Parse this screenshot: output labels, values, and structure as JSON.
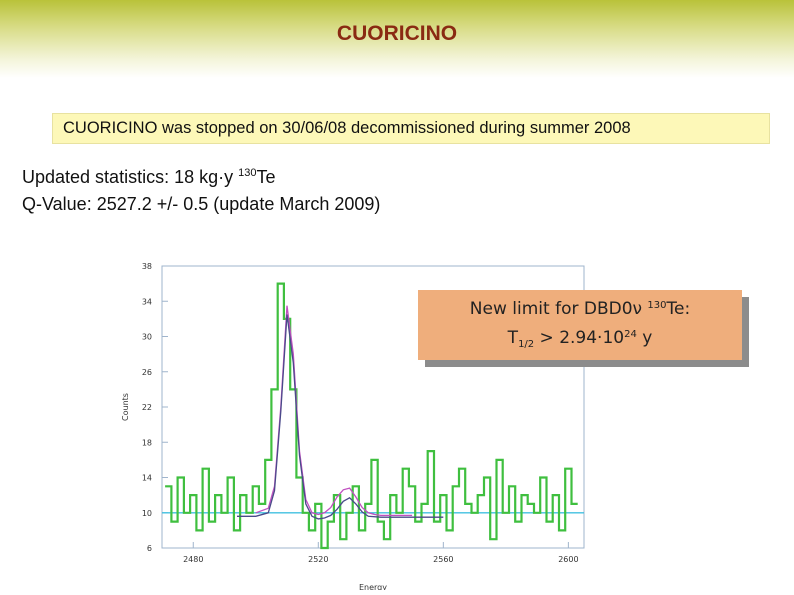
{
  "header": {
    "title": "CUORICINO"
  },
  "notice": {
    "text": "CUORICINO was stopped on 30/06/08 decommissioned during summer 2008"
  },
  "stats": {
    "line1_prefix": "Updated statistics: 18 kg·y ",
    "line1_isotope_mass": "130",
    "line1_element": "Te",
    "line2": "Q-Value: 2527.2 +/- 0.5 (update March 2009)"
  },
  "limit_box": {
    "line1_prefix": "New limit for DBD0ν ",
    "line1_isotope_mass": "130",
    "line1_suffix": "Te:",
    "line2_T": "T",
    "line2_sub": "1/2",
    "line2_mid": " > 2.94·10",
    "line2_exp": "24",
    "line2_unit": " y"
  },
  "chart_data": {
    "type": "line",
    "xlabel": "Energy",
    "ylabel": "Counts",
    "xlim": [
      2470,
      2605
    ],
    "ylim": [
      6,
      38
    ],
    "x_ticks": [
      2480,
      2520,
      2560,
      2600
    ],
    "y_ticks": [
      38,
      34,
      30,
      26,
      22,
      18,
      14,
      10,
      6
    ],
    "grid": false,
    "legend": "none",
    "series": [
      {
        "style": "step-histogram",
        "color": "#3fbf3f",
        "x": [
          2472,
          2474,
          2476,
          2478,
          2480,
          2482,
          2484,
          2486,
          2488,
          2490,
          2492,
          2494,
          2496,
          2498,
          2500,
          2502,
          2504,
          2506,
          2508,
          2510,
          2512,
          2514,
          2516,
          2518,
          2520,
          2522,
          2524,
          2526,
          2528,
          2530,
          2532,
          2534,
          2536,
          2538,
          2540,
          2542,
          2544,
          2546,
          2548,
          2550,
          2552,
          2554,
          2556,
          2558,
          2560,
          2562,
          2564,
          2566,
          2568,
          2570,
          2572,
          2574,
          2576,
          2578,
          2580,
          2582,
          2584,
          2586,
          2588,
          2590,
          2592,
          2594,
          2596,
          2598,
          2600,
          2602
        ],
        "values": [
          13,
          9,
          14,
          10,
          12,
          8,
          15,
          9,
          12,
          10,
          14,
          8,
          12,
          10,
          13,
          11,
          16,
          24,
          36,
          32,
          24,
          14,
          10,
          8,
          11,
          6,
          9,
          12,
          7,
          10,
          13,
          8,
          11,
          16,
          9,
          7,
          12,
          10,
          15,
          13,
          9,
          11,
          17,
          9,
          12,
          8,
          13,
          15,
          11,
          10,
          12,
          14,
          7,
          16,
          10,
          13,
          9,
          12,
          11,
          10,
          14,
          9,
          12,
          8,
          15,
          11
        ]
      },
      {
        "name_hidden": "fit",
        "style": "curve",
        "color": "#c050c0",
        "x": [
          2500,
          2504,
          2506,
          2508,
          2510,
          2512,
          2514,
          2516,
          2518,
          2520,
          2522,
          2524,
          2526,
          2528,
          2530,
          2532,
          2534,
          2536,
          2538,
          2540,
          2550
        ],
        "values": [
          10,
          10.5,
          13,
          22,
          33.5,
          28,
          17,
          11.5,
          10,
          9.8,
          10,
          10.6,
          11.8,
          12.6,
          12.8,
          11.8,
          10.6,
          10,
          9.8,
          9.7,
          9.7
        ]
      },
      {
        "style": "curve",
        "color": "#4a4a8a",
        "x": [
          2494,
          2500,
          2504,
          2506,
          2508,
          2510,
          2512,
          2514,
          2516,
          2518,
          2520,
          2522,
          2524,
          2526,
          2528,
          2530,
          2532,
          2534,
          2536,
          2540,
          2550,
          2560
        ],
        "values": [
          9.6,
          9.6,
          10,
          12.5,
          21.5,
          32.5,
          27,
          16.5,
          11,
          9.6,
          9.3,
          9.4,
          9.7,
          10.4,
          11.3,
          11.7,
          11,
          10.1,
          9.6,
          9.5,
          9.5,
          9.5
        ]
      },
      {
        "style": "flat",
        "color": "#40c0e0",
        "x": [
          2470,
          2605
        ],
        "values": [
          10,
          10
        ]
      }
    ]
  }
}
